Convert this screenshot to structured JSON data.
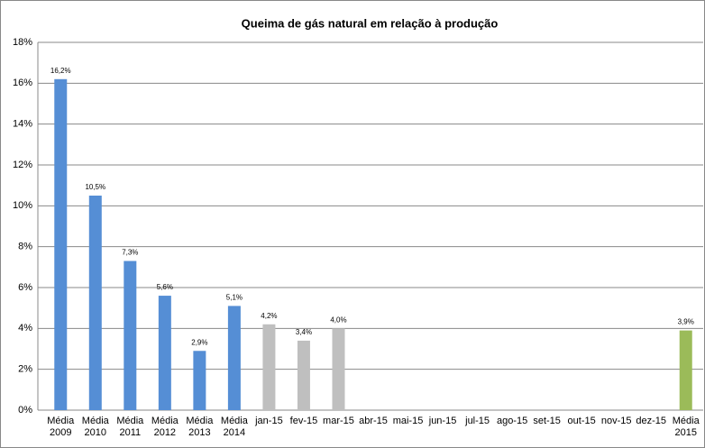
{
  "chart_data": {
    "type": "bar",
    "title": "Queima de gás natural em relação à produção",
    "categories": [
      "Média 2009",
      "Média 2010",
      "Média 2011",
      "Média 2012",
      "Média 2013",
      "Média 2014",
      "jan-15",
      "fev-15",
      "mar-15",
      "abr-15",
      "mai-15",
      "jun-15",
      "jul-15",
      "ago-15",
      "set-15",
      "out-15",
      "nov-15",
      "dez-15",
      "Média 2015"
    ],
    "values": [
      16.2,
      10.5,
      7.3,
      5.6,
      2.9,
      5.1,
      4.2,
      3.4,
      4.0,
      null,
      null,
      null,
      null,
      null,
      null,
      null,
      null,
      null,
      3.9
    ],
    "value_labels": [
      "16,2%",
      "10,5%",
      "7,3%",
      "5,6%",
      "2,9%",
      "5,1%",
      "4,2%",
      "3,4%",
      "4,0%",
      null,
      null,
      null,
      null,
      null,
      null,
      null,
      null,
      null,
      "3,9%"
    ],
    "colors": [
      "#558ed5",
      "#558ed5",
      "#558ed5",
      "#558ed5",
      "#558ed5",
      "#558ed5",
      "#bfbfbf",
      "#bfbfbf",
      "#bfbfbf",
      null,
      null,
      null,
      null,
      null,
      null,
      null,
      null,
      null,
      "#9bbb59"
    ],
    "ylim": [
      0,
      18
    ],
    "yticks": [
      {
        "value": 0,
        "label": "0%"
      },
      {
        "value": 2,
        "label": "2%"
      },
      {
        "value": 4,
        "label": "4%"
      },
      {
        "value": 6,
        "label": "6%"
      },
      {
        "value": 8,
        "label": "8%"
      },
      {
        "value": 10,
        "label": "10%"
      },
      {
        "value": 12,
        "label": "12%"
      },
      {
        "value": 14,
        "label": "14%"
      },
      {
        "value": 16,
        "label": "16%"
      },
      {
        "value": 18,
        "label": "18%"
      }
    ],
    "grid": true
  }
}
